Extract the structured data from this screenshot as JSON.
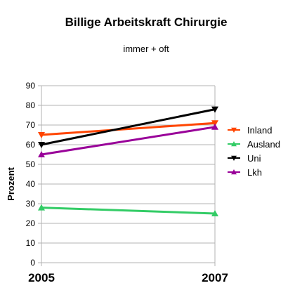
{
  "chart_data": {
    "type": "line",
    "title": "Billige Arbeitskraft Chirurgie",
    "subtitle": "immer + oft",
    "ylabel": "Prozent",
    "xlabel": "",
    "categories": [
      "2005",
      "2007"
    ],
    "ylim": [
      0,
      90
    ],
    "yticks": [
      0,
      10,
      20,
      30,
      40,
      50,
      60,
      70,
      80,
      90
    ],
    "grid": true,
    "legend_position": "right",
    "series": [
      {
        "name": "Inland",
        "values": [
          65,
          71
        ],
        "color": "#ff4500",
        "marker": "triangle-down"
      },
      {
        "name": "Ausland",
        "values": [
          28,
          25
        ],
        "color": "#33cc66",
        "marker": "triangle-up"
      },
      {
        "name": "Uni",
        "values": [
          60,
          78
        ],
        "color": "#000000",
        "marker": "triangle-down"
      },
      {
        "name": "Lkh",
        "values": [
          55,
          69
        ],
        "color": "#990099",
        "marker": "triangle-up"
      }
    ]
  }
}
